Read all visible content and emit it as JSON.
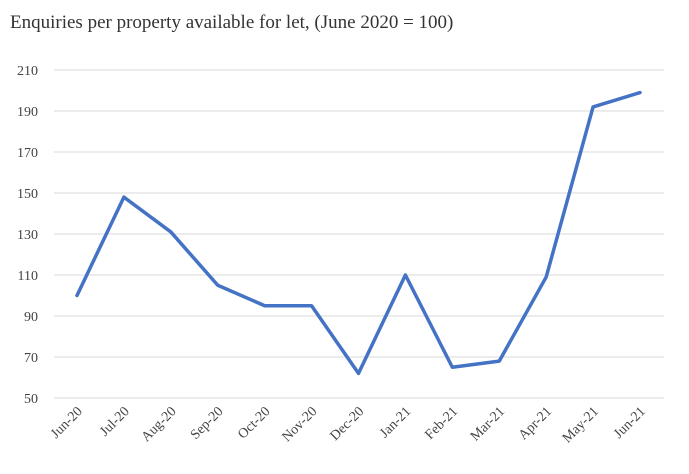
{
  "chart_data": {
    "type": "line",
    "title": "Enquiries per property available  for let, (June 2020 = 100)",
    "xlabel": "",
    "ylabel": "",
    "categories": [
      "Jun-20",
      "Jul-20",
      "Aug-20",
      "Sep-20",
      "Oct-20",
      "Nov-20",
      "Dec-20",
      "Jan-21",
      "Feb-21",
      "Mar-21",
      "Apr-21",
      "May-21",
      "Jun-21"
    ],
    "series": [
      {
        "name": "Enquiries per property",
        "color": "#4472C4",
        "values": [
          100,
          148,
          131,
          105,
          95,
          95,
          62,
          110,
          65,
          68,
          109,
          192,
          199
        ]
      }
    ],
    "yticks": [
      50,
      70,
      90,
      110,
      130,
      150,
      170,
      190,
      210
    ],
    "ylim": [
      50,
      210
    ],
    "grid": true,
    "legend": "none"
  }
}
